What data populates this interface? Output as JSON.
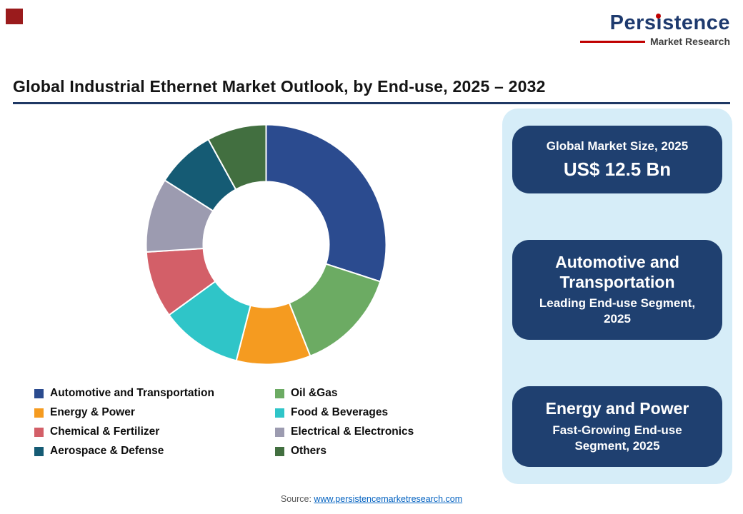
{
  "logo": {
    "name": "Persistence",
    "subtitle": "Market Research"
  },
  "title": "Global Industrial Ethernet Market Outlook, by End-use, 2025 – 2032",
  "chart_data": {
    "type": "pie",
    "donut": true,
    "unit": "%",
    "values_estimated_from_arc_angles": true,
    "legend_position": "bottom",
    "series": [
      {
        "name": "Automotive and Transportation",
        "value": 30,
        "color": "#2b4b8f"
      },
      {
        "name": "Oil &Gas",
        "value": 14,
        "color": "#6cab63"
      },
      {
        "name": "Energy & Power",
        "value": 10,
        "color": "#f59b20"
      },
      {
        "name": "Food & Beverages",
        "value": 11,
        "color": "#2fc5c8"
      },
      {
        "name": "Chemical & Fertilizer",
        "value": 9,
        "color": "#d35f68"
      },
      {
        "name": "Electrical & Electronics",
        "value": 10,
        "color": "#9c9bb0"
      },
      {
        "name": "Aerospace & Defense",
        "value": 8,
        "color": "#155b74"
      },
      {
        "name": "Others",
        "value": 8,
        "color": "#426f40"
      }
    ]
  },
  "panel": {
    "background": "#d6edf8",
    "card_color": "#1f4070",
    "cards": [
      {
        "title": "Global Market Size, 2025",
        "value": "US$ 12.5 Bn"
      },
      {
        "title": "Automotive and Transportation",
        "subtitle": "Leading End-use Segment, 2025"
      },
      {
        "title": "Energy and Power",
        "subtitle": "Fast-Growing End-use Segment, 2025"
      }
    ]
  },
  "footer": {
    "source_label": "Source: ",
    "source_link": "www.persistencemarketresearch.com"
  },
  "colors": {
    "accent_red": "#c00000",
    "brand_navy": "#1e3a6e",
    "title_rule_navy": "#1f3864",
    "link_blue": "#0563c1"
  }
}
